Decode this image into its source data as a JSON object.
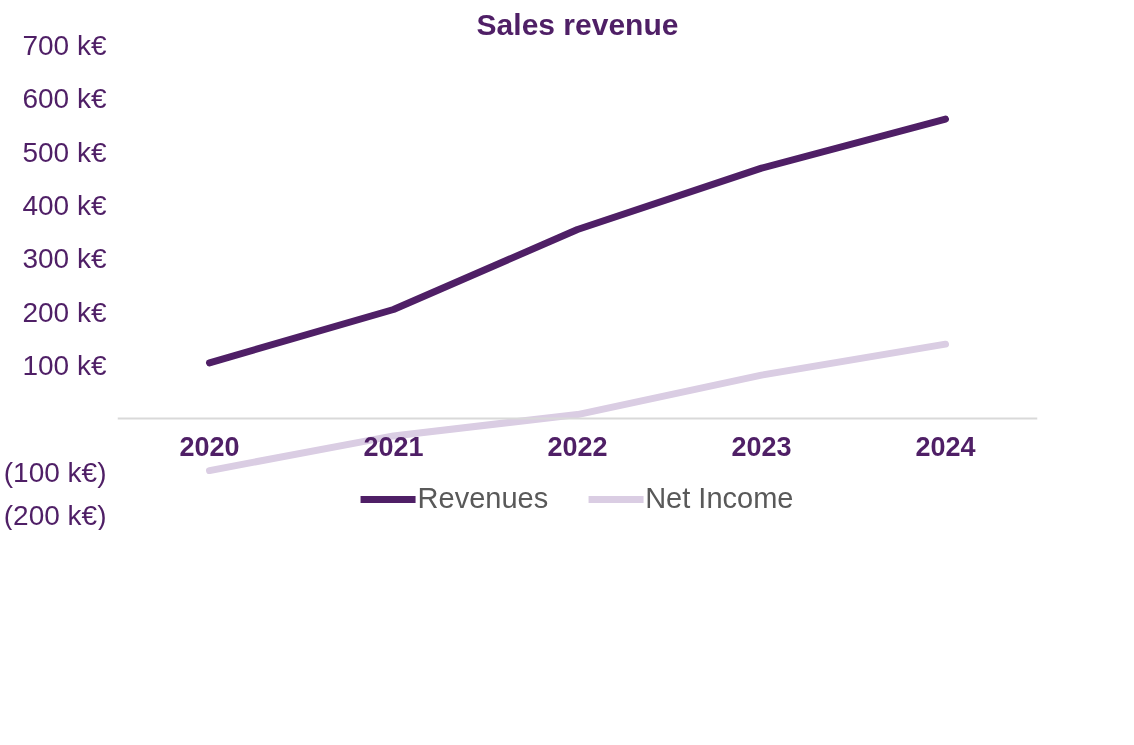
{
  "chart_data": {
    "type": "line",
    "title": "Sales revenue",
    "categories": [
      "2020",
      "2021",
      "2022",
      "2023",
      "2024"
    ],
    "series": [
      {
        "name": "Revenues",
        "color": "#4f1f66",
        "values": [
          105,
          205,
          355,
          470,
          562
        ]
      },
      {
        "name": "Net Income",
        "color": "#dacde3",
        "values": [
          -97,
          -32,
          8,
          82,
          140
        ]
      }
    ],
    "ylim": [
      -200,
      700
    ],
    "yticks": [
      {
        "value": -200,
        "label": "(200 k€)"
      },
      {
        "value": -100,
        "label": "(100 k€)"
      },
      {
        "value": 0,
        "label": null
      },
      {
        "value": 100,
        "label": "100 k€"
      },
      {
        "value": 200,
        "label": "200 k€"
      },
      {
        "value": 300,
        "label": "300 k€"
      },
      {
        "value": 400,
        "label": "400 k€"
      },
      {
        "value": 500,
        "label": "500 k€"
      },
      {
        "value": 600,
        "label": "600 k€"
      },
      {
        "value": 700,
        "label": "700 k€"
      }
    ],
    "grid": false,
    "legend": "bottom",
    "marker": "none",
    "line_style": "solid"
  }
}
